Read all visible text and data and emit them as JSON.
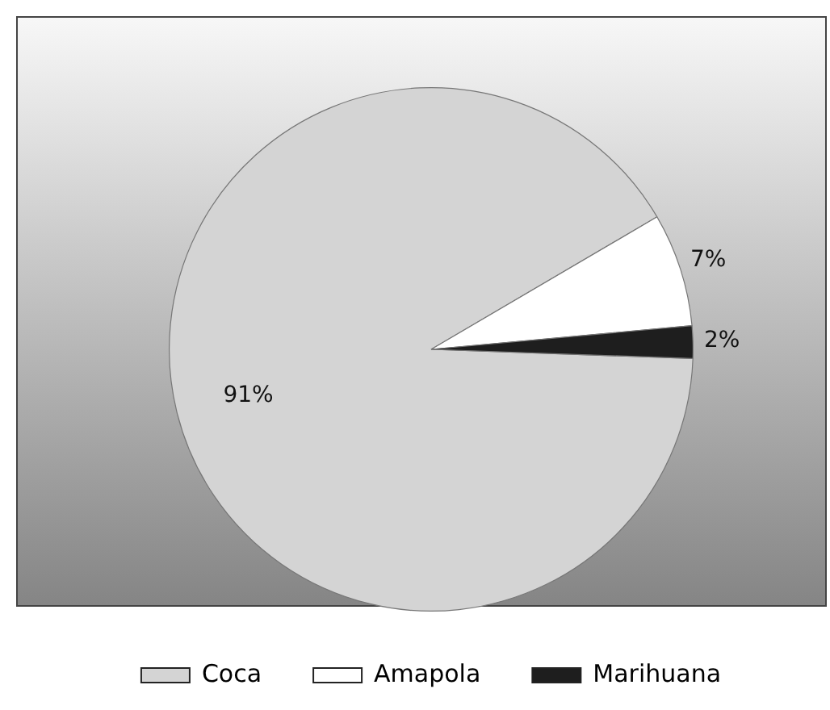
{
  "chart_data": {
    "type": "pie",
    "categories": [
      "Coca",
      "Amapola",
      "Marihuana"
    ],
    "values": [
      91,
      7,
      2
    ],
    "colors": [
      "#d4d4d4",
      "#ffffff",
      "#1e1e1e"
    ],
    "value_labels": [
      "91%",
      "7%",
      "2%"
    ],
    "legend": "bottom"
  }
}
